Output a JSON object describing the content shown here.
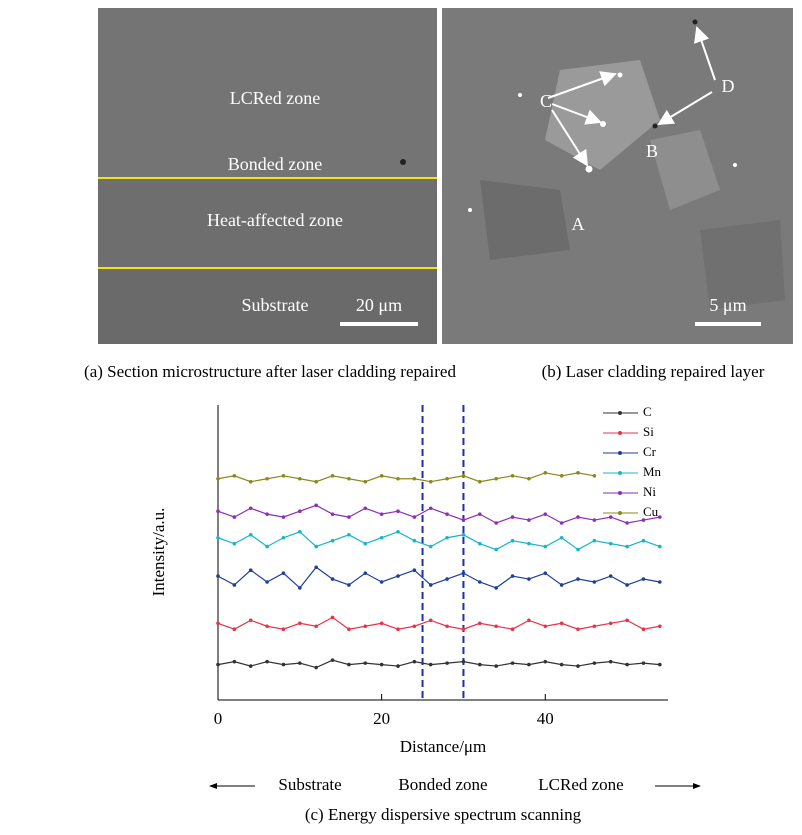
{
  "figure": {
    "panel_a": {
      "labels": [
        "LCRed zone",
        "Bonded zone",
        "Heat-affected zone",
        "Substrate"
      ],
      "scale_bar": "20 μm",
      "caption": "(a) Section microstructure after laser cladding repaired"
    },
    "panel_b": {
      "labels": [
        "C",
        "D",
        "B",
        "A"
      ],
      "scale_bar": "5 μm",
      "caption": "(b) Laser cladding repaired layer"
    },
    "zones": [
      "Substrate",
      "Bonded zone",
      "LCRed zone"
    ],
    "caption_c": "(c) Energy dispersive spectrum scanning"
  },
  "chart_data": {
    "type": "line",
    "xlabel": "Distance/μm",
    "ylabel": "Intensity/a.u.",
    "x": [
      0,
      2,
      4,
      6,
      8,
      10,
      12,
      14,
      16,
      18,
      20,
      22,
      24,
      26,
      28,
      30,
      32,
      34,
      36,
      38,
      40,
      42,
      44,
      46,
      48,
      50,
      52,
      54
    ],
    "xlim": [
      0,
      55
    ],
    "xticks": [
      0,
      20,
      40
    ],
    "ylim": [
      0,
      100
    ],
    "vlines": [
      25,
      30
    ],
    "series": [
      {
        "name": "C",
        "color": "#333333",
        "values": [
          12,
          13,
          11.5,
          13,
          12,
          12.5,
          11,
          13.5,
          12,
          12.5,
          12,
          11.5,
          13,
          12,
          12.5,
          13,
          12,
          11.5,
          12.5,
          12,
          13,
          12,
          11.5,
          12.5,
          13,
          12,
          12.5,
          12
        ]
      },
      {
        "name": "Si",
        "color": "#e8324a",
        "values": [
          26,
          24,
          27,
          25,
          24,
          26,
          25,
          28,
          24,
          25,
          26,
          24,
          25,
          27,
          25,
          24,
          26,
          25,
          24,
          27,
          25,
          26,
          24,
          25,
          26,
          27,
          24,
          25
        ]
      },
      {
        "name": "Cr",
        "color": "#1f3f9a",
        "values": [
          42,
          39,
          44,
          40,
          43,
          38,
          45,
          41,
          39,
          43,
          40,
          42,
          44,
          39,
          41,
          43,
          40,
          38,
          42,
          41,
          43,
          39,
          41,
          40,
          42,
          39,
          41,
          40
        ]
      },
      {
        "name": "Mn",
        "color": "#18b5c8",
        "values": [
          55,
          53,
          56,
          52,
          55,
          57,
          52,
          54,
          56,
          53,
          55,
          57,
          54,
          52,
          55,
          56,
          53,
          51,
          54,
          53,
          52,
          55,
          51,
          54,
          53,
          52,
          54,
          52
        ]
      },
      {
        "name": "Ni",
        "color": "#8b2fb5",
        "values": [
          64,
          62,
          65,
          63,
          62,
          64,
          66,
          63,
          62,
          65,
          63,
          64,
          62,
          65,
          63,
          61,
          63,
          60,
          62,
          61,
          63,
          60,
          62,
          61,
          62,
          60,
          61,
          62
        ]
      },
      {
        "name": "Cu",
        "color": "#8a8a1a",
        "values": [
          75,
          76,
          74,
          75,
          76,
          75,
          74,
          76,
          75,
          74,
          76,
          75,
          75,
          74,
          75,
          76,
          74,
          75,
          76,
          75,
          77,
          76,
          77,
          76,
          null,
          null,
          null,
          null
        ]
      }
    ]
  }
}
